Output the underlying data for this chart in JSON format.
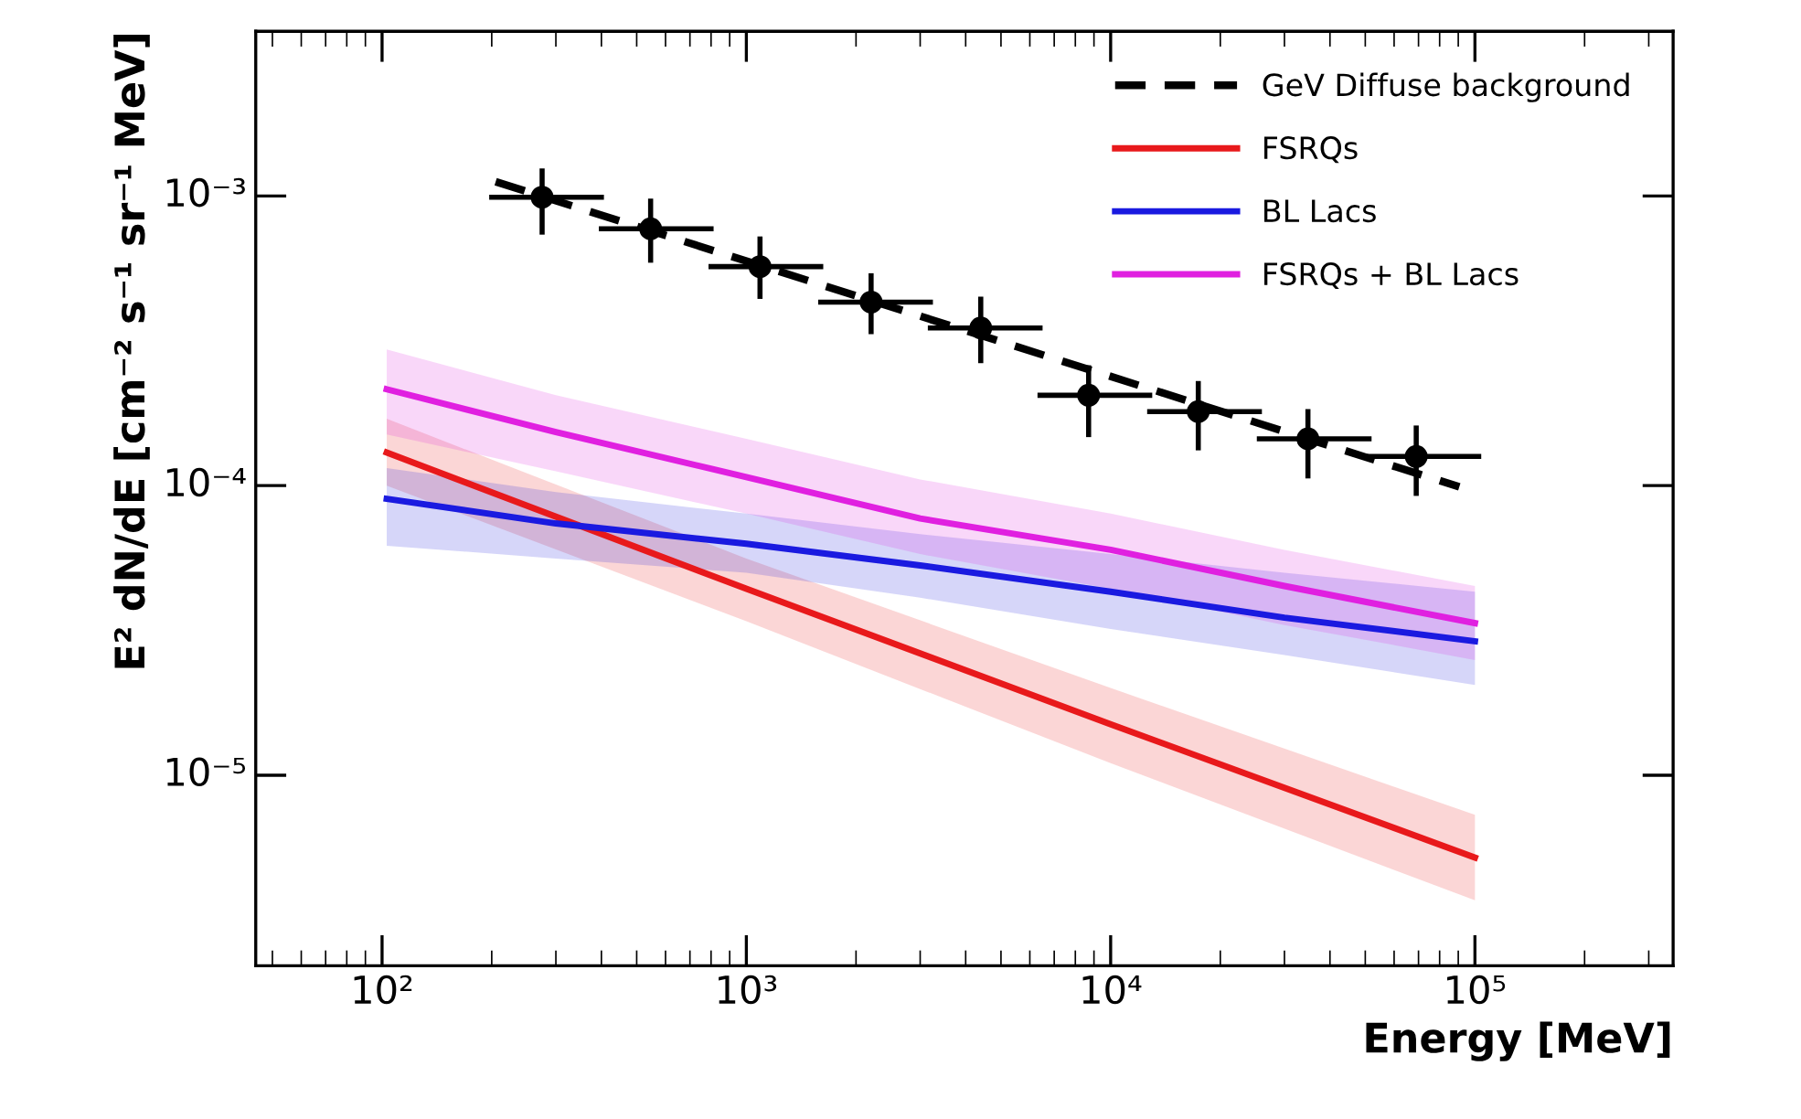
{
  "chart_data": {
    "type": "line",
    "xlabel": "Energy [MeV]",
    "ylabel": "E² dN/dE [cm⁻² s⁻¹ sr⁻¹ MeV]",
    "log": "xy",
    "grid": false,
    "legend": "top right",
    "xlim": [
      45,
      350000
    ],
    "ylim": [
      2.2e-06,
      0.0037
    ],
    "xticks": [
      {
        "value": 100,
        "label": "10²"
      },
      {
        "value": 1000,
        "label": "10³"
      },
      {
        "value": 10000,
        "label": "10⁴"
      },
      {
        "value": 100000,
        "label": "10⁵"
      }
    ],
    "yticks": [
      {
        "value": 1e-05,
        "label": "10⁻⁵"
      },
      {
        "value": 0.0001,
        "label": "10⁻⁴"
      },
      {
        "value": 0.001,
        "label": "10⁻³"
      }
    ],
    "series": [
      {
        "name": "GeV Diffuse background",
        "line_style": "dashed",
        "color": "#000000",
        "x": [
          205,
          90600
        ],
        "values": [
          0.00112,
          9.9e-05
        ]
      },
      {
        "name": "FSRQs",
        "line_style": "solid",
        "color": "#e8191b",
        "x": [
          103,
          1000,
          10000,
          100000
        ],
        "values": [
          0.00013,
          4.4e-05,
          1.5e-05,
          5.2e-06
        ],
        "lower": [
          0.0001,
          3.4e-05,
          1.1e-05,
          3.7e-06
        ],
        "upper": [
          0.00017,
          5.6e-05,
          2e-05,
          7.3e-06
        ]
      },
      {
        "name": "BL Lacs",
        "line_style": "solid",
        "color": "#1a1ae0",
        "x": [
          103,
          300,
          1000,
          3000,
          10000,
          30000,
          100000
        ],
        "values": [
          9e-05,
          7.4e-05,
          6.3e-05,
          5.3e-05,
          4.3e-05,
          3.5e-05,
          2.9e-05
        ],
        "lower": [
          6.2e-05,
          5.6e-05,
          5e-05,
          4.1e-05,
          3.2e-05,
          2.6e-05,
          2.05e-05
        ],
        "upper": [
          0.000115,
          9.5e-05,
          8e-05,
          6.8e-05,
          5.8e-05,
          5e-05,
          4.3e-05
        ]
      },
      {
        "name": "FSRQs + BL Lacs",
        "line_style": "solid",
        "color": "#e020e0",
        "x": [
          103,
          300,
          1000,
          3000,
          10000,
          30000,
          100000
        ],
        "values": [
          0.000215,
          0.000153,
          0.000107,
          7.7e-05,
          6e-05,
          4.5e-05,
          3.35e-05
        ],
        "lower": [
          0.00015,
          0.000112,
          8e-05,
          5.8e-05,
          4.4e-05,
          3.3e-05,
          2.5e-05
        ],
        "upper": [
          0.000295,
          0.000205,
          0.000145,
          0.000105,
          8e-05,
          6e-05,
          4.5e-05
        ]
      },
      {
        "type": "scatter",
        "marker": "circle",
        "color": "#000000",
        "x": [
          275,
          546,
          1090,
          2200,
          4400,
          8700,
          17400,
          34800,
          69000
        ],
        "values": [
          0.00099,
          0.00077,
          0.00057,
          0.00043,
          0.00035,
          0.000205,
          0.00018,
          0.000145,
          0.000126
        ],
        "errors": [
          [
            0.00075,
            0.00122
          ],
          [
            0.0006,
            0.00096
          ],
          [
            0.00045,
            0.00071
          ],
          [
            0.00034,
            0.00053
          ],
          [
            0.00027,
            0.00044
          ],
          [
            0.00015,
            0.000255
          ],
          [
            0.000135,
            0.000225
          ],
          [
            0.000108,
            0.00018
          ],
          [
            9.4e-05,
            0.000158
          ]
        ],
        "xerrors": [
          [
            200,
            400
          ],
          [
            400,
            800
          ],
          [
            800,
            1600
          ],
          [
            1600,
            3200
          ],
          [
            3200,
            6400
          ],
          [
            6400,
            12800
          ],
          [
            12800,
            25600
          ],
          [
            25600,
            51200
          ],
          [
            51200,
            102400
          ]
        ]
      }
    ]
  }
}
